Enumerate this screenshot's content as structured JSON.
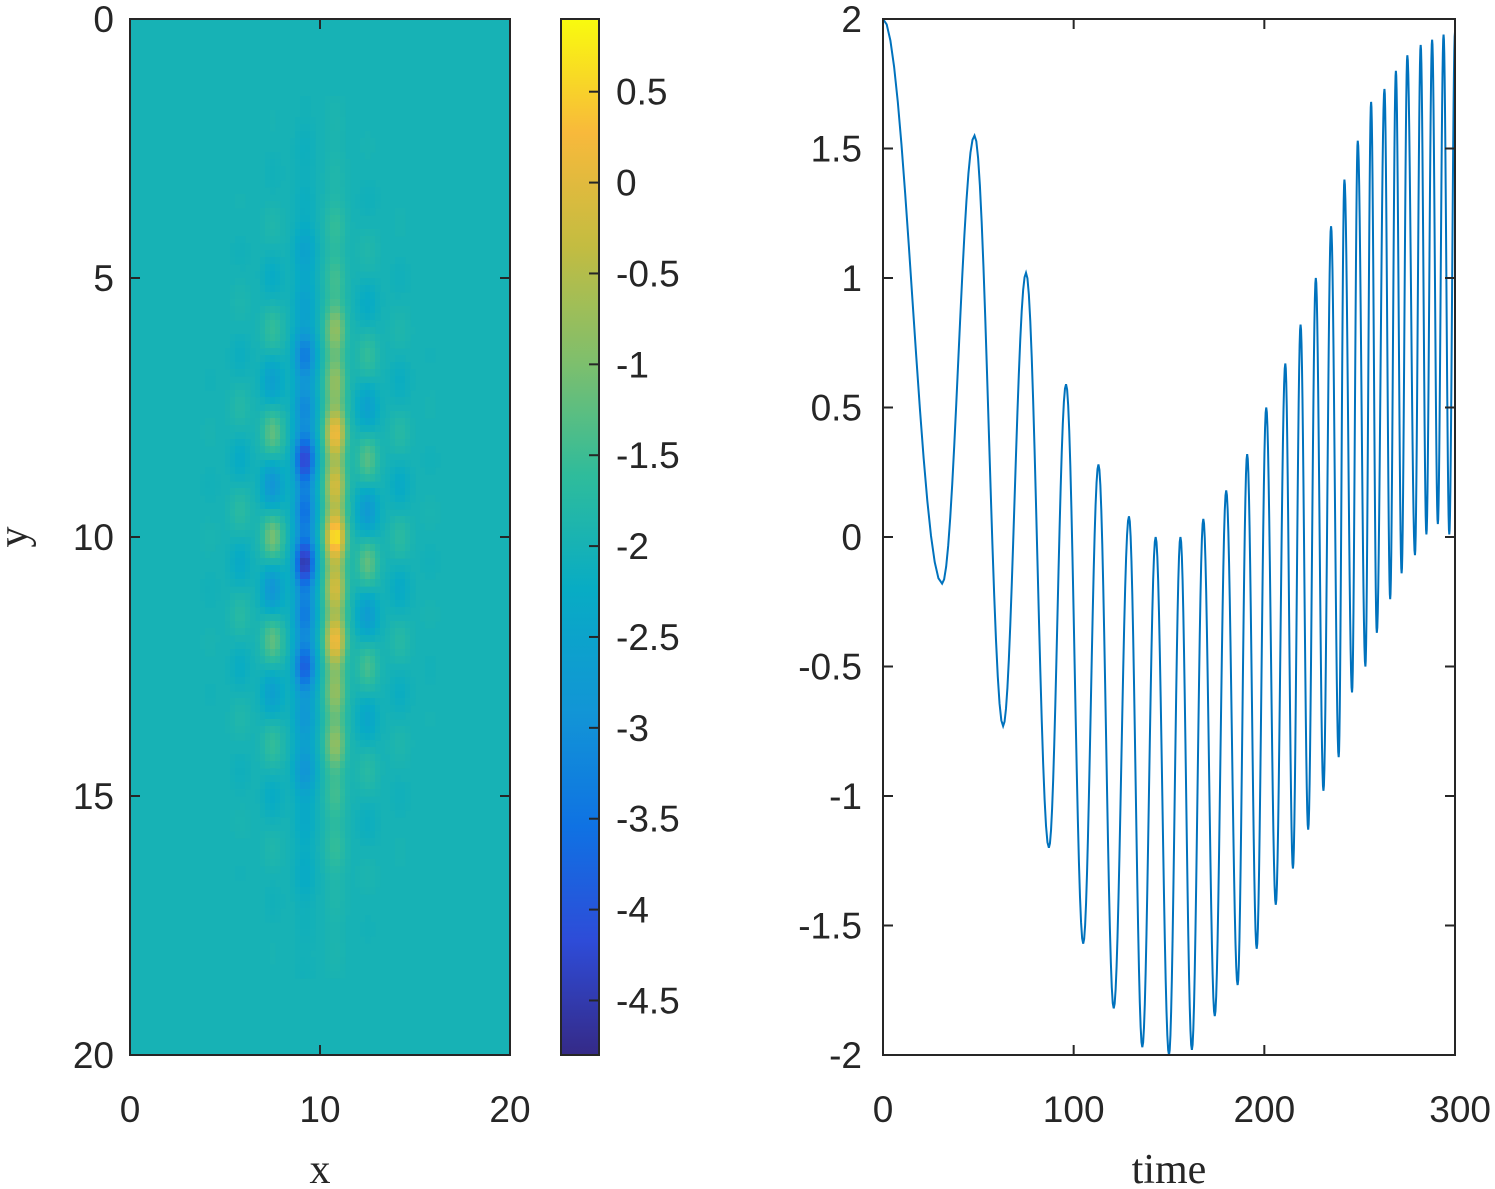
{
  "chart_data": [
    {
      "type": "heatmap",
      "xlabel": "x",
      "ylabel": "y",
      "xlim": [
        0,
        20
      ],
      "ylim": [
        0,
        20
      ],
      "y_direction": "reversed",
      "xticks": [
        "0",
        "10",
        "20"
      ],
      "yticks": [
        "0",
        "5",
        "10",
        "15",
        "20"
      ],
      "colormap": "parula",
      "grid": false,
      "colorbar": {
        "clim": [
          -4.8,
          0.9
        ],
        "ticks": [
          "0.5",
          "0",
          "-0.5",
          "-1",
          "-1.5",
          "-2",
          "-2.5",
          "-3",
          "-3.5",
          "-4",
          "-4.5"
        ],
        "tick_values": [
          0.5,
          0,
          -0.5,
          -1,
          -1.5,
          -2,
          -2.5,
          -3,
          -3.5,
          -4,
          -4.5
        ]
      },
      "field": {
        "description": "lattice of alternating extrema centred at (10,10); background -2",
        "background": -2.0,
        "center": [
          10,
          10
        ],
        "columns_x": [
          4.2,
          5.8,
          7.5,
          9.2,
          10.8,
          12.5,
          14.2,
          15.8
        ],
        "row_spacing": 1.0,
        "min_value": -4.8,
        "max_value": 0.9
      }
    },
    {
      "type": "line",
      "xlabel": "time",
      "ylabel": "",
      "xlim": [
        0,
        300
      ],
      "ylim": [
        -2,
        2
      ],
      "xticks": [
        "0",
        "100",
        "200",
        "300"
      ],
      "yticks": [
        "2",
        "1.5",
        "1",
        "0.5",
        "0",
        "-0.5",
        "-1",
        "-1.5",
        "-2"
      ],
      "grid": false,
      "line_color": "#0072bd",
      "series": [
        {
          "name": "",
          "extrema": [
            [
              0,
              2.0
            ],
            [
              31,
              -0.18
            ],
            [
              48,
              1.55
            ],
            [
              63,
              -0.73
            ],
            [
              75,
              1.02
            ],
            [
              87,
              -1.2
            ],
            [
              96,
              0.59
            ],
            [
              105,
              -1.57
            ],
            [
              113,
              0.28
            ],
            [
              121,
              -1.82
            ],
            [
              129,
              0.08
            ],
            [
              136,
              -1.97
            ],
            [
              143,
              0.0
            ],
            [
              150,
              -2.0
            ],
            [
              156,
              0.0
            ],
            [
              162,
              -1.98
            ],
            [
              168,
              0.07
            ],
            [
              174,
              -1.85
            ],
            [
              180,
              0.18
            ],
            [
              186,
              -1.73
            ],
            [
              191,
              0.32
            ],
            [
              196,
              -1.59
            ],
            [
              201,
              0.5
            ],
            [
              206,
              -1.42
            ],
            [
              211,
              0.67
            ],
            [
              215,
              -1.28
            ],
            [
              219,
              0.82
            ],
            [
              223,
              -1.13
            ],
            [
              227,
              1.0
            ],
            [
              231,
              -0.98
            ],
            [
              235,
              1.2
            ],
            [
              239,
              -0.85
            ],
            [
              242,
              1.38
            ],
            [
              246,
              -0.6
            ],
            [
              249,
              1.53
            ],
            [
              253,
              -0.5
            ],
            [
              256,
              1.68
            ],
            [
              259,
              -0.37
            ],
            [
              263,
              1.73
            ],
            [
              266,
              -0.24
            ],
            [
              269,
              1.8
            ],
            [
              272,
              -0.14
            ],
            [
              275,
              1.86
            ],
            [
              279,
              -0.07
            ],
            [
              282,
              1.9
            ],
            [
              285,
              0.01
            ],
            [
              288,
              1.92
            ],
            [
              291,
              0.05
            ],
            [
              294,
              1.94
            ],
            [
              297,
              0.01
            ],
            [
              300,
              1.95
            ]
          ]
        }
      ]
    }
  ]
}
